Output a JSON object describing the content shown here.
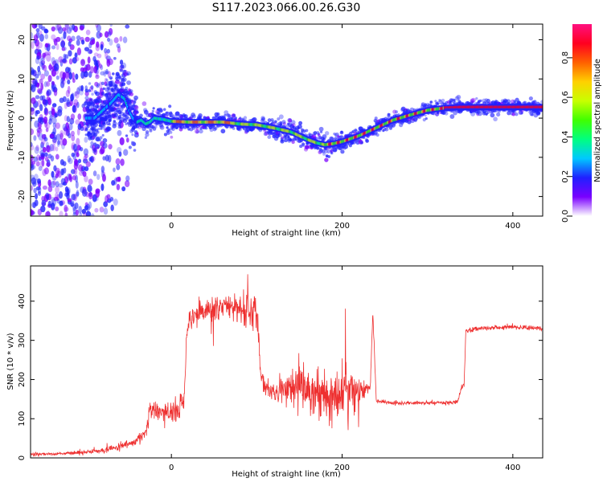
{
  "title": "S117.2023.066.00.26.G30",
  "chart_data": [
    {
      "type": "heatmap",
      "xlabel": "Height of straight line (km)",
      "ylabel": "Frequency (Hz)",
      "xlim": [
        -165,
        435
      ],
      "ylim": [
        -25,
        24
      ],
      "xticks": [
        0,
        200,
        400
      ],
      "yticks": [
        -20,
        -10,
        0,
        10,
        20
      ],
      "grid": false,
      "colorbar": {
        "label": "Normalized spectral amplitude",
        "range": [
          0.0,
          0.97
        ],
        "ticks": [
          "0.0",
          "0.2",
          "0.4",
          "0.6",
          "0.8"
        ],
        "colors": [
          "#ffffff",
          "#7a00ff",
          "#2020ff",
          "#00c8ff",
          "#00ff80",
          "#40ff00",
          "#c8ff00",
          "#ffd000",
          "#ff6000",
          "#ff0020",
          "#ff1080"
        ]
      },
      "ridge": {
        "x": [
          -90,
          -80,
          -70,
          -62,
          -55,
          -50,
          -45,
          -40,
          -35,
          -30,
          -25,
          -20,
          -10,
          0,
          20,
          40,
          60,
          80,
          100,
          120,
          140,
          160,
          170,
          180,
          190,
          200,
          220,
          240,
          260,
          280,
          300,
          320,
          340,
          380,
          435
        ],
        "y": [
          0,
          2,
          4,
          6,
          5,
          2,
          0,
          -1,
          -0.5,
          -1.5,
          -1,
          0,
          -0.3,
          -0.8,
          -1,
          -1,
          -1,
          -1.5,
          -1.7,
          -2.5,
          -3.5,
          -5.5,
          -6.3,
          -6.8,
          -6.5,
          -6,
          -4.5,
          -2.5,
          -0.5,
          0.8,
          2,
          2.6,
          2.8,
          2.8,
          2.8
        ]
      }
    },
    {
      "type": "line",
      "xlabel": "Height of straight line (km)",
      "ylabel": "SNR (10 * v/v)",
      "xlim": [
        -165,
        435
      ],
      "ylim": [
        0,
        490
      ],
      "xticks": [
        0,
        200,
        400
      ],
      "yticks": [
        0,
        100,
        200,
        300,
        400
      ],
      "grid": false,
      "series": [
        {
          "color": "#ee3030",
          "x": [
            -165,
            -140,
            -120,
            -100,
            -80,
            -60,
            -45,
            -35,
            -28,
            -25,
            -20,
            -10,
            0,
            10,
            15,
            18,
            25,
            40,
            60,
            80,
            100,
            105,
            110,
            120,
            140,
            160,
            180,
            200,
            220,
            233,
            236,
            240,
            260,
            300,
            335,
            340,
            343,
            345,
            360,
            400,
            435
          ],
          "y": [
            10,
            10,
            12,
            15,
            20,
            28,
            40,
            55,
            80,
            130,
            110,
            120,
            115,
            130,
            150,
            320,
            360,
            375,
            385,
            380,
            370,
            220,
            180,
            170,
            175,
            165,
            160,
            175,
            175,
            180,
            375,
            145,
            140,
            140,
            142,
            180,
            190,
            325,
            330,
            335,
            330
          ],
          "noise": [
            3,
            3,
            4,
            5,
            6,
            8,
            10,
            12,
            15,
            25,
            25,
            25,
            25,
            25,
            20,
            25,
            25,
            30,
            35,
            35,
            35,
            25,
            20,
            20,
            45,
            70,
            75,
            65,
            40,
            10,
            10,
            4,
            4,
            4,
            4,
            6,
            6,
            5,
            5,
            5,
            5
          ]
        }
      ]
    }
  ]
}
